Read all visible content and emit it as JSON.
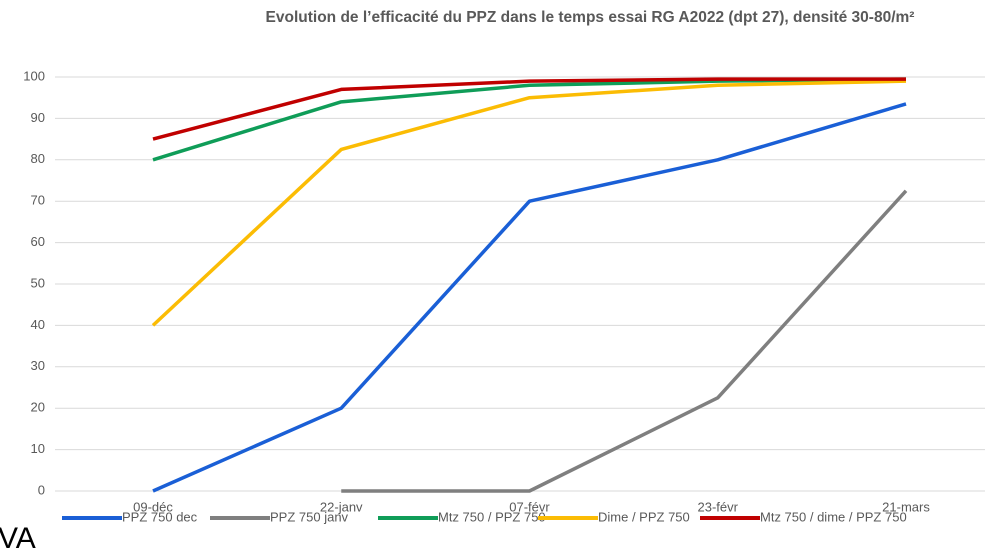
{
  "chart_data": {
    "type": "line",
    "title": "Evolution de l’efficacité du PPZ dans le temps essai RG A2022 (dpt 27), densité 30-80/m²",
    "categories": [
      "09-déc",
      "22-janv",
      "07-févr",
      "23-févr",
      "21-mars"
    ],
    "series": [
      {
        "name": "PPZ 750 dec",
        "color": "#1a5fd6",
        "values": [
          0,
          20,
          70,
          80,
          93.5
        ]
      },
      {
        "name": "PPZ 750 janv",
        "color": "#7f7f7f",
        "values": [
          null,
          0,
          0,
          22.5,
          72.5
        ]
      },
      {
        "name": "Mtz 750 / PPZ 750",
        "color": "#0f9d58",
        "values": [
          80,
          94,
          98,
          99,
          99.5
        ]
      },
      {
        "name": "Dime / PPZ 750",
        "color": "#fbbc04",
        "values": [
          40,
          82.5,
          95,
          98,
          99
        ]
      },
      {
        "name": "Mtz 750 / dime / PPZ 750",
        "color": "#c00000",
        "values": [
          85,
          97,
          99,
          99.5,
          99.5
        ]
      }
    ],
    "ylim": [
      0,
      100
    ],
    "yticks": [
      0,
      10,
      20,
      30,
      40,
      50,
      60,
      70,
      80,
      90,
      100
    ],
    "grid": true,
    "legend": "bottom",
    "note": "VA"
  }
}
